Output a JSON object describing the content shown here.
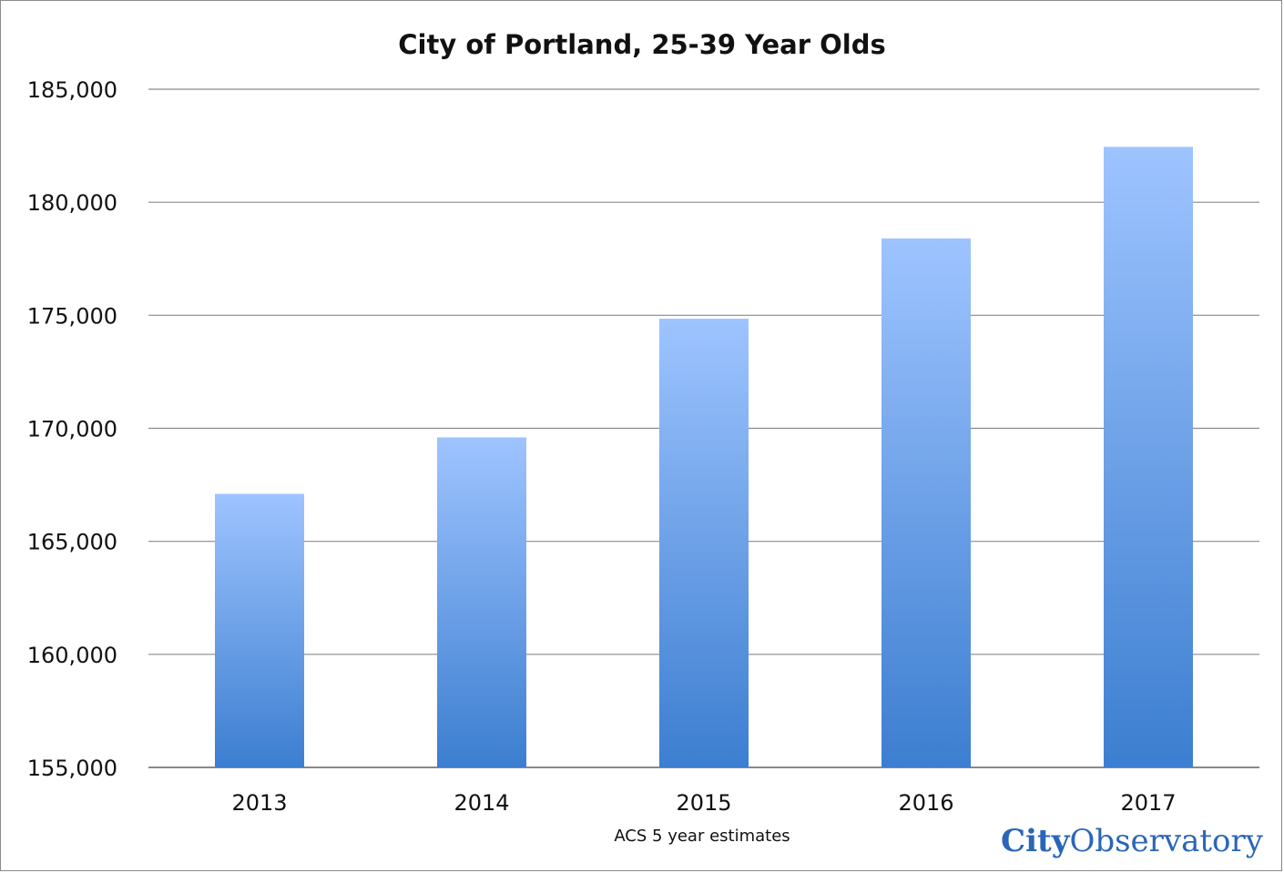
{
  "chart_data": {
    "type": "bar",
    "title": "City of Portland, 25-39 Year Olds",
    "xlabel": "ACS 5 year estimates",
    "ylabel": "",
    "categories": [
      "2013",
      "2014",
      "2015",
      "2016",
      "2017"
    ],
    "values": [
      167100,
      169600,
      174850,
      178400,
      182450
    ],
    "ylim": [
      155000,
      185000
    ],
    "yticks": [
      155000,
      160000,
      165000,
      170000,
      175000,
      180000,
      185000
    ],
    "ytick_labels": [
      "155,000",
      "160,000",
      "165,000",
      "170,000",
      "175,000",
      "180,000",
      "185,000"
    ],
    "grid": true,
    "legend": "none",
    "colors": {
      "bar_top": "#9ec4ff",
      "bar_bottom": "#3c7ed0",
      "grid": "#8a8a8a"
    }
  },
  "branding": {
    "logo_city": "City",
    "logo_observatory": "Observatory",
    "logo_color": "#2a66b8"
  }
}
